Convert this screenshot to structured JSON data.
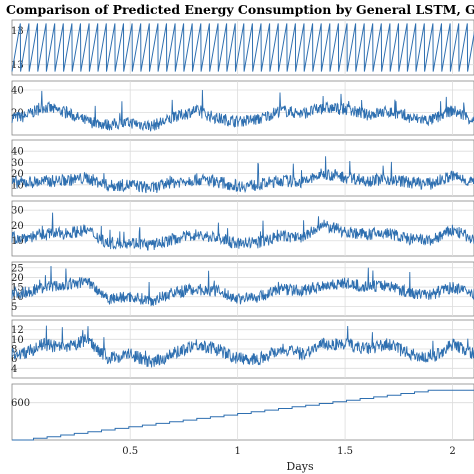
{
  "chart_data": {
    "type": "line",
    "title": "Comparison of Predicted Energy Consumption by General LSTM, GRU, TCN and NBEATS",
    "xlabel": "Days",
    "xlim": [
      -0.05,
      2.1
    ],
    "x_ticks": [
      0.5,
      1,
      1.5,
      2
    ],
    "x_tick_labels": [
      "0.5",
      "1",
      "1.5",
      "2"
    ],
    "grid": true,
    "line_color": "#2e6fb0",
    "panels": [
      {
        "ylim": [
          12.2,
          13.8
        ],
        "y_ticks": [
          12.5,
          13.5
        ],
        "y_tick_labels": [
          "13",
          "13"
        ],
        "series": {
          "kind": "sawtooth",
          "period": 0.04,
          "low": 12.3,
          "high": 13.7
        }
      },
      {
        "ylim": [
          0,
          48
        ],
        "y_ticks": [
          20,
          40
        ],
        "y_tick_labels": [
          "20",
          "40"
        ],
        "series": {
          "kind": "profile",
          "x": [
            0,
            0.1,
            0.2,
            0.3,
            0.4,
            0.5,
            0.6,
            0.7,
            0.8,
            0.9,
            1.0,
            1.1,
            1.2,
            1.3,
            1.4,
            1.5,
            1.6,
            1.7,
            1.8,
            1.9,
            2.0,
            2.1
          ],
          "y": [
            16,
            25,
            20,
            12,
            9,
            11,
            8,
            15,
            22,
            15,
            12,
            14,
            22,
            19,
            24,
            23,
            18,
            21,
            15,
            13,
            22,
            13
          ]
        }
      },
      {
        "ylim": [
          0,
          50
        ],
        "y_ticks": [
          10,
          20,
          30,
          40
        ],
        "y_tick_labels": [
          "10",
          "20",
          "30",
          "40"
        ],
        "series": {
          "kind": "profile",
          "x": [
            0,
            0.1,
            0.2,
            0.3,
            0.4,
            0.5,
            0.6,
            0.7,
            0.8,
            0.9,
            1.0,
            1.1,
            1.2,
            1.3,
            1.4,
            1.5,
            1.6,
            1.7,
            1.8,
            1.9,
            2.0,
            2.1
          ],
          "y": [
            12,
            13,
            14,
            16,
            9,
            10,
            7,
            12,
            15,
            13,
            9,
            10,
            14,
            12,
            20,
            17,
            14,
            15,
            12,
            11,
            18,
            12
          ]
        }
      },
      {
        "ylim": [
          0,
          36
        ],
        "y_ticks": [
          10,
          20,
          30
        ],
        "y_tick_labels": [
          "10",
          "20",
          "30"
        ],
        "series": {
          "kind": "profile",
          "x": [
            0,
            0.1,
            0.2,
            0.3,
            0.4,
            0.5,
            0.6,
            0.7,
            0.8,
            0.9,
            1.0,
            1.1,
            1.2,
            1.3,
            1.4,
            1.5,
            1.6,
            1.7,
            1.8,
            1.9,
            2.0,
            2.1
          ],
          "y": [
            12,
            14,
            15,
            17,
            8,
            9,
            7,
            11,
            14,
            12,
            8,
            9,
            13,
            12,
            20,
            16,
            14,
            15,
            11,
            10,
            17,
            11
          ]
        }
      },
      {
        "ylim": [
          0,
          28
        ],
        "y_ticks": [
          5,
          10,
          15,
          20,
          25
        ],
        "y_tick_labels": [
          "5",
          "10",
          "15",
          "20",
          "25"
        ],
        "series": {
          "kind": "profile",
          "x": [
            0,
            0.1,
            0.2,
            0.3,
            0.4,
            0.5,
            0.6,
            0.7,
            0.8,
            0.9,
            1.0,
            1.1,
            1.2,
            1.3,
            1.4,
            1.5,
            1.6,
            1.7,
            1.8,
            1.9,
            2.0,
            2.1
          ],
          "y": [
            12,
            15,
            16,
            18,
            9,
            10,
            8,
            12,
            14,
            13,
            9,
            10,
            14,
            13,
            16,
            17,
            15,
            16,
            12,
            11,
            15,
            11
          ]
        }
      },
      {
        "ylim": [
          2,
          14
        ],
        "y_ticks": [
          4,
          6,
          8,
          10,
          12
        ],
        "y_tick_labels": [
          "4",
          "6",
          "8",
          "10",
          "12"
        ],
        "series": {
          "kind": "profile",
          "x": [
            0,
            0.1,
            0.2,
            0.3,
            0.4,
            0.5,
            0.6,
            0.7,
            0.8,
            0.9,
            1.0,
            1.1,
            1.2,
            1.3,
            1.4,
            1.5,
            1.6,
            1.7,
            1.8,
            1.9,
            2.0,
            2.1
          ],
          "y": [
            7,
            9,
            8,
            10,
            6,
            7,
            5,
            7,
            9,
            8,
            6,
            6,
            8,
            7,
            9,
            9,
            8,
            9,
            7,
            6,
            9,
            7
          ]
        }
      },
      {
        "ylim": [
          0,
          900
        ],
        "y_ticks": [
          600
        ],
        "y_tick_labels": [
          "600"
        ],
        "series": {
          "kind": "step",
          "start": 0,
          "end": 800,
          "steps": 30
        }
      }
    ]
  }
}
